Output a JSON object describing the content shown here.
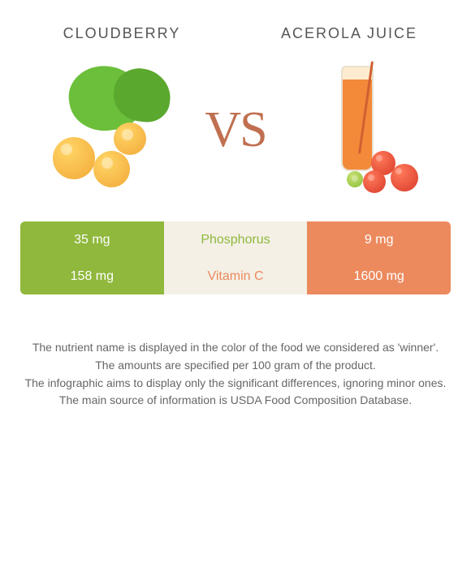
{
  "header": {
    "left_title": "CLOUDBERRY",
    "right_title": "ACEROLA JUICE",
    "vs_label": "VS"
  },
  "colors": {
    "left_bar": "#8fb83d",
    "right_bar": "#ec8a5e",
    "mid_bg": "#f4f0e6",
    "left_text": "#8fb83d",
    "right_text": "#ec8a5e",
    "bar_text": "#ffffff",
    "vs_text": "#c07050"
  },
  "table": {
    "type": "comparison-table",
    "rows": [
      {
        "nutrient": "Phosphorus",
        "left_value": "35 mg",
        "right_value": "9 mg",
        "winner": "left"
      },
      {
        "nutrient": "Vitamin C",
        "left_value": "158 mg",
        "right_value": "1600 mg",
        "winner": "right"
      }
    ]
  },
  "footnotes": [
    "The nutrient name is displayed in the color of the food we considered as 'winner'.",
    "The amounts are specified per 100 gram of the product.",
    "The infographic aims to display only the significant differences, ignoring minor ones.",
    "The main source of information is USDA Food Composition Database."
  ]
}
